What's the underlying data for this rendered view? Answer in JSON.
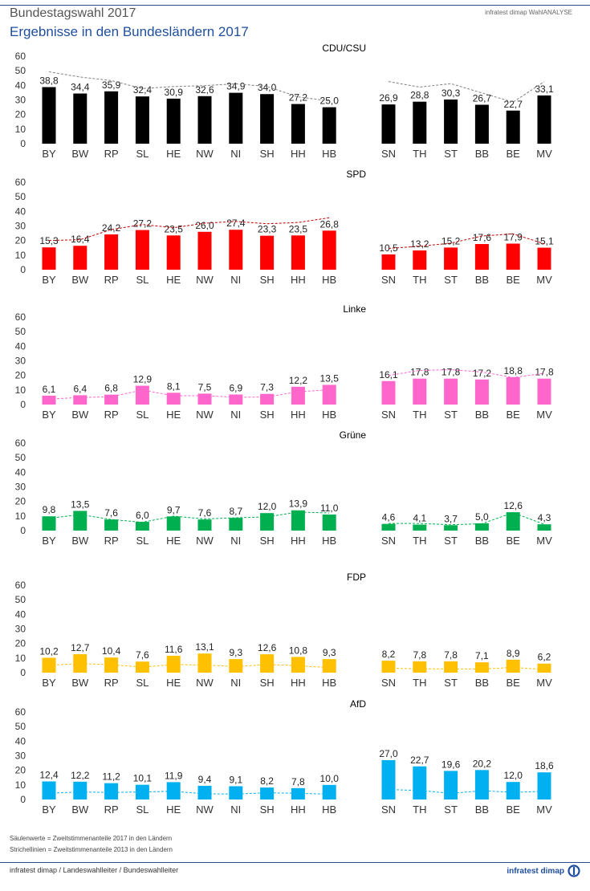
{
  "header": {
    "title": "Bundestagswahl 2017",
    "subtitle": "Ergebnisse in den Bundesländern 2017",
    "brand": "infratest dimap WahlANALYSE"
  },
  "footer": {
    "note_bars": "Säulenwerte = Zweitstimmenanteile 2017 in den Ländern",
    "note_lines": "Strichellinien = Zweitstimmenanteile 2013 in den Ländern",
    "source": "infratest dimap / Landeswahlleiter / Bundeswahlleiter",
    "logo": "infratest dimap"
  },
  "chart_data": [
    {
      "type": "bar",
      "title": "CDU/CSU",
      "color": "#000000",
      "line_color": "#808080",
      "categories": [
        "BY",
        "BW",
        "RP",
        "SL",
        "HE",
        "NW",
        "NI",
        "SH",
        "HH",
        "HB",
        "SN",
        "TH",
        "ST",
        "BB",
        "BE",
        "MV"
      ],
      "values": [
        38.8,
        34.4,
        35.9,
        32.4,
        30.9,
        32.6,
        34.9,
        34.0,
        27.2,
        25.0,
        26.9,
        28.8,
        30.3,
        26.7,
        22.7,
        33.1
      ],
      "labels": [
        "38,8",
        "34,4",
        "35,9",
        "32,4",
        "30,9",
        "32,6",
        "34,9",
        "34,0",
        "27,2",
        "25,0",
        "26,9",
        "28,8",
        "30,3",
        "26,7",
        "22,7",
        "33,1"
      ],
      "values_2013": [
        49.3,
        45.7,
        43.3,
        37.8,
        39.2,
        39.8,
        41.1,
        39.2,
        32.1,
        29.3,
        42.6,
        38.8,
        41.2,
        34.8,
        28.5,
        42.5
      ],
      "ylim": [
        0,
        60
      ],
      "yticks": [
        "0",
        "10",
        "20",
        "30",
        "40",
        "50",
        "60"
      ]
    },
    {
      "type": "bar",
      "title": "SPD",
      "color": "#ff0000",
      "line_color": "#c00000",
      "categories": [
        "BY",
        "BW",
        "RP",
        "SL",
        "HE",
        "NW",
        "NI",
        "SH",
        "HH",
        "HB",
        "SN",
        "TH",
        "ST",
        "BB",
        "BE",
        "MV"
      ],
      "values": [
        15.3,
        16.4,
        24.2,
        27.2,
        23.5,
        26.0,
        27.4,
        23.3,
        23.5,
        26.8,
        10.5,
        13.2,
        15.2,
        17.6,
        17.9,
        15.1
      ],
      "labels": [
        "15,3",
        "16,4",
        "24,2",
        "27,2",
        "23,5",
        "26,0",
        "27,4",
        "23,3",
        "23,5",
        "26,8",
        "10,5",
        "13,2",
        "15,2",
        "17,6",
        "17,9",
        "15,1"
      ],
      "values_2013": [
        20.0,
        20.6,
        27.5,
        31.0,
        28.8,
        31.9,
        33.1,
        31.5,
        32.4,
        35.6,
        14.6,
        16.1,
        18.2,
        23.1,
        24.6,
        17.8
      ],
      "ylim": [
        0,
        60
      ],
      "yticks": [
        "0",
        "10",
        "20",
        "30",
        "40",
        "50",
        "60"
      ]
    },
    {
      "type": "bar",
      "title": "Linke",
      "color": "#ff66cc",
      "line_color": "#ff66cc",
      "categories": [
        "BY",
        "BW",
        "RP",
        "SL",
        "HE",
        "NW",
        "NI",
        "SH",
        "HH",
        "HB",
        "SN",
        "TH",
        "ST",
        "BB",
        "BE",
        "MV"
      ],
      "values": [
        6.1,
        6.4,
        6.8,
        12.9,
        8.1,
        7.5,
        6.9,
        7.3,
        12.2,
        13.5,
        16.1,
        17.8,
        17.8,
        17.2,
        18.8,
        17.8
      ],
      "labels": [
        "6,1",
        "6,4",
        "6,8",
        "12,9",
        "8,1",
        "7,5",
        "6,9",
        "7,3",
        "12,2",
        "13,5",
        "16,1",
        "17,8",
        "17,8",
        "17,2",
        "18,8",
        "17,8"
      ],
      "values_2013": [
        3.8,
        4.8,
        5.4,
        10.0,
        6.0,
        6.1,
        5.0,
        5.2,
        8.8,
        10.1,
        20.0,
        23.4,
        23.9,
        22.4,
        18.5,
        21.5
      ],
      "ylim": [
        0,
        60
      ],
      "yticks": [
        "0",
        "10",
        "20",
        "30",
        "40",
        "50",
        "60"
      ]
    },
    {
      "type": "bar",
      "title": "Grüne",
      "color": "#00b050",
      "line_color": "#00b050",
      "categories": [
        "BY",
        "BW",
        "RP",
        "SL",
        "HE",
        "NW",
        "NI",
        "SH",
        "HH",
        "HB",
        "SN",
        "TH",
        "ST",
        "BB",
        "BE",
        "MV"
      ],
      "values": [
        9.8,
        13.5,
        7.6,
        6.0,
        9.7,
        7.6,
        8.7,
        12.0,
        13.9,
        11.0,
        4.6,
        4.1,
        3.7,
        5.0,
        12.6,
        4.3
      ],
      "labels": [
        "9,8",
        "13,5",
        "7,6",
        "6,0",
        "9,7",
        "7,6",
        "8,7",
        "12,0",
        "13,9",
        "11,0",
        "4,6",
        "4,1",
        "3,7",
        "5,0",
        "12,6",
        "4,3"
      ],
      "values_2013": [
        8.4,
        11.0,
        7.6,
        5.7,
        9.9,
        8.0,
        8.8,
        9.4,
        12.7,
        12.1,
        4.9,
        4.9,
        4.0,
        4.7,
        12.3,
        4.3
      ],
      "ylim": [
        0,
        60
      ],
      "yticks": [
        "0",
        "10",
        "20",
        "30",
        "40",
        "50",
        "60"
      ]
    },
    {
      "type": "bar",
      "title": "FDP",
      "color": "#ffc000",
      "line_color": "#ffc000",
      "categories": [
        "BY",
        "BW",
        "RP",
        "SL",
        "HE",
        "NW",
        "NI",
        "SH",
        "HH",
        "HB",
        "SN",
        "TH",
        "ST",
        "BB",
        "BE",
        "MV"
      ],
      "values": [
        10.2,
        12.7,
        10.4,
        7.6,
        11.6,
        13.1,
        9.3,
        12.6,
        10.8,
        9.3,
        8.2,
        7.8,
        7.8,
        7.1,
        8.9,
        6.2
      ],
      "labels": [
        "10,2",
        "12,7",
        "10,4",
        "7,6",
        "11,6",
        "13,1",
        "9,3",
        "12,6",
        "10,8",
        "9,3",
        "8,2",
        "7,8",
        "7,8",
        "7,1",
        "8,9",
        "6,2"
      ],
      "values_2013": [
        5.1,
        6.2,
        5.5,
        3.8,
        5.6,
        5.2,
        4.2,
        5.6,
        4.8,
        3.4,
        3.1,
        2.6,
        2.6,
        2.5,
        3.6,
        2.2
      ],
      "ylim": [
        0,
        60
      ],
      "yticks": [
        "0",
        "10",
        "20",
        "30",
        "40",
        "50",
        "60"
      ]
    },
    {
      "type": "bar",
      "title": "AfD",
      "color": "#00b0f0",
      "line_color": "#00b0f0",
      "categories": [
        "BY",
        "BW",
        "RP",
        "SL",
        "HE",
        "NW",
        "NI",
        "SH",
        "HH",
        "HB",
        "SN",
        "TH",
        "ST",
        "BB",
        "BE",
        "MV"
      ],
      "values": [
        12.4,
        12.2,
        11.2,
        10.1,
        11.9,
        9.4,
        9.1,
        8.2,
        7.8,
        10.0,
        27.0,
        22.7,
        19.6,
        20.2,
        12.0,
        18.6
      ],
      "labels": [
        "12,4",
        "12,2",
        "11,2",
        "10,1",
        "11,9",
        "9,4",
        "9,1",
        "8,2",
        "7,8",
        "10,0",
        "27,0",
        "22,7",
        "19,6",
        "20,2",
        "12,0",
        "18,6"
      ],
      "values_2013": [
        4.3,
        5.2,
        4.8,
        5.2,
        5.6,
        3.9,
        3.7,
        4.6,
        4.2,
        3.7,
        6.8,
        6.2,
        4.2,
        6.0,
        4.9,
        5.6
      ],
      "ylim": [
        0,
        60
      ],
      "yticks": [
        "0",
        "10",
        "20",
        "30",
        "40",
        "50",
        "60"
      ]
    }
  ]
}
